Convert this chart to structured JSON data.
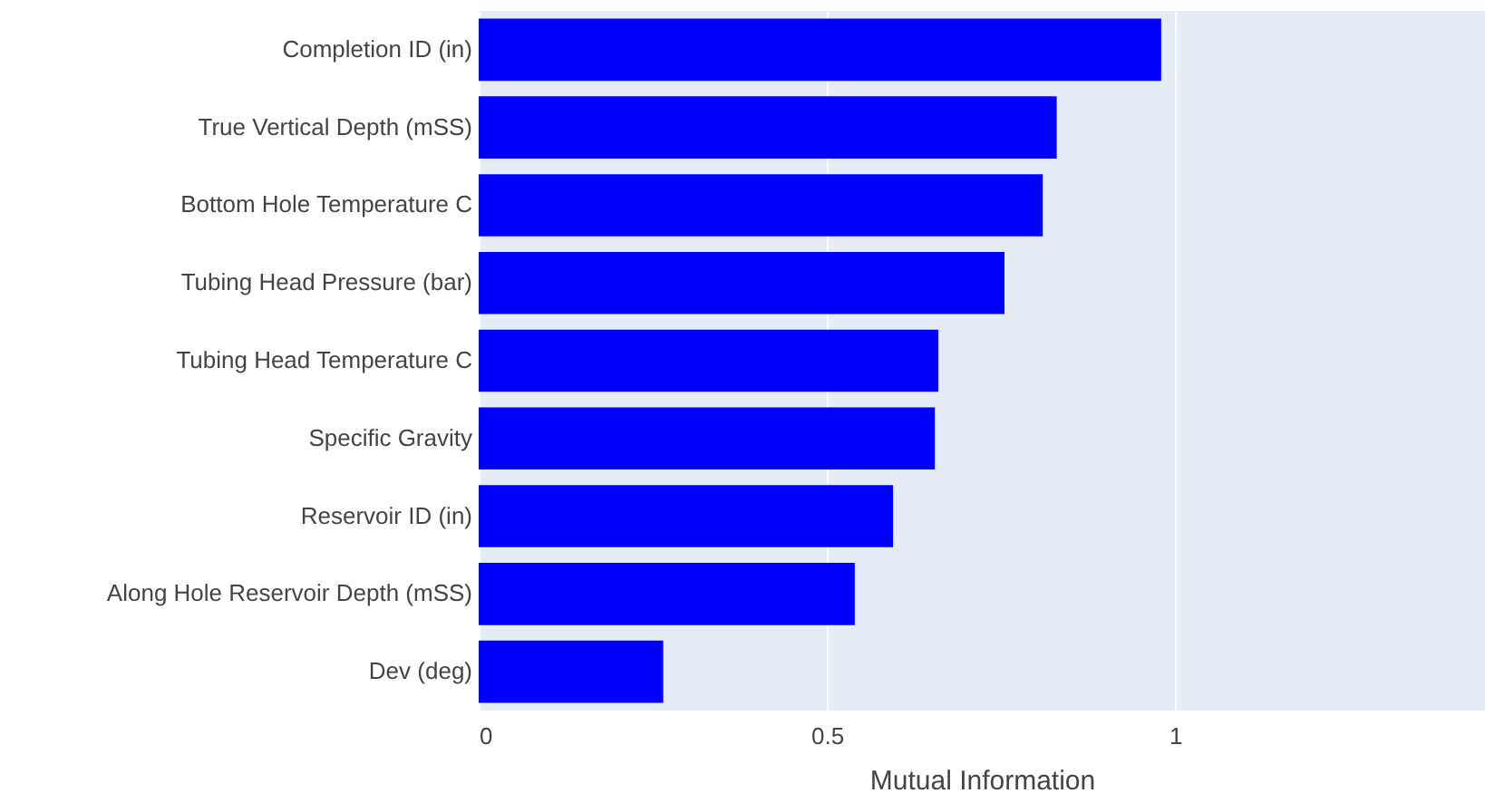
{
  "chart_data": {
    "type": "bar",
    "orientation": "horizontal",
    "xlabel": "Mutual Information",
    "categories": [
      "Completion ID (in)",
      "True Vertical Depth (mSS)",
      "Bottom Hole Temperature C",
      "Tubing Head Pressure (bar)",
      "Tubing Head Temperature C",
      "Specific Gravity",
      "Reservoir ID (in)",
      "Along Hole Reservoir Depth (mSS)",
      "Dev (deg)"
    ],
    "values": [
      0.98,
      0.83,
      0.81,
      0.755,
      0.66,
      0.655,
      0.595,
      0.54,
      0.265
    ],
    "color": "#0000ff",
    "xlim": [
      0,
      1.445
    ],
    "xticks": [
      0,
      0.5,
      1
    ],
    "grid": "x"
  }
}
